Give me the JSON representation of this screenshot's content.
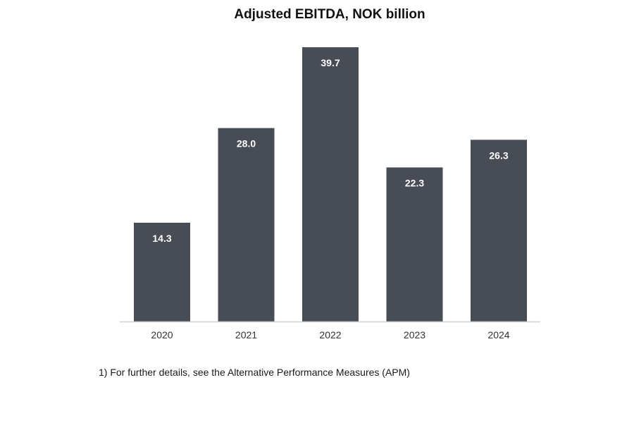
{
  "colors": {
    "bar": "#474c55",
    "bar_label": "#ffffff",
    "axis": "#cfcfcf",
    "tick_label": "#333333"
  },
  "footnote": "1)  For further details, see the Alternative Performance Measures (APM)",
  "chart_data": {
    "type": "bar",
    "title": "Adjusted EBITDA, NOK billion",
    "xlabel": "",
    "ylabel": "",
    "categories": [
      "2020",
      "2021",
      "2022",
      "2023",
      "2024"
    ],
    "values": [
      14.3,
      28.0,
      39.7,
      22.3,
      26.3
    ],
    "value_labels": [
      "14.3",
      "28.0",
      "39.7",
      "22.3",
      "26.3"
    ],
    "ylim": [
      0,
      39.7
    ],
    "grid": false,
    "legend": "none"
  }
}
